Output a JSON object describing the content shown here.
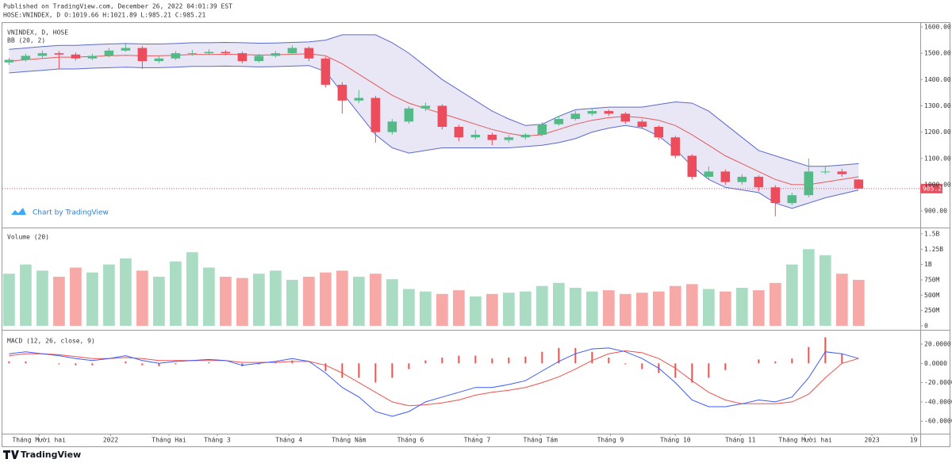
{
  "header": {
    "line1": "Published on TradingView.com, December 26, 2022 04:01:39 EST",
    "line2": "HOSE:VNINDEX, D O:1019.66 H:1021.89 L:985.21 C:985.21"
  },
  "branding": {
    "chart_by": "Chart by TradingView",
    "logo": "TradingView"
  },
  "chart_data": [
    {
      "type": "candlestick",
      "title": "VNINDEX, D, HOSE",
      "subtitle": "BB (20, 2)",
      "up_color": "#53b987",
      "down_color": "#eb4d5c",
      "xlim": [
        -0.4,
        54.7
      ],
      "ylim": [
        837,
        1618
      ],
      "yticks": [
        {
          "value": 900,
          "label": "900.00"
        },
        {
          "value": 1000,
          "label": "1000.00"
        },
        {
          "value": 1100,
          "label": "1100.00"
        },
        {
          "value": 1200,
          "label": "1200.00"
        },
        {
          "value": 1300,
          "label": "1300.00"
        },
        {
          "value": 1400,
          "label": "1400.00"
        },
        {
          "value": 1500,
          "label": "1500.00"
        },
        {
          "value": 1600,
          "label": "1600.00"
        }
      ],
      "ohlc": [
        [
          1465,
          1482,
          1455,
          1475
        ],
        [
          1475,
          1498,
          1468,
          1490
        ],
        [
          1490,
          1510,
          1482,
          1500
        ],
        [
          1500,
          1508,
          1440,
          1495
        ],
        [
          1495,
          1503,
          1472,
          1480
        ],
        [
          1480,
          1498,
          1474,
          1490
        ],
        [
          1490,
          1520,
          1484,
          1510
        ],
        [
          1510,
          1535,
          1505,
          1520
        ],
        [
          1520,
          1528,
          1440,
          1470
        ],
        [
          1470,
          1488,
          1462,
          1480
        ],
        [
          1480,
          1508,
          1474,
          1500
        ],
        [
          1500,
          1512,
          1490,
          1500
        ],
        [
          1500,
          1515,
          1494,
          1505
        ],
        [
          1505,
          1512,
          1492,
          1500
        ],
        [
          1500,
          1506,
          1462,
          1470
        ],
        [
          1470,
          1498,
          1464,
          1490
        ],
        [
          1490,
          1508,
          1484,
          1500
        ],
        [
          1500,
          1530,
          1494,
          1520
        ],
        [
          1520,
          1526,
          1470,
          1480
        ],
        [
          1480,
          1486,
          1370,
          1380
        ],
        [
          1380,
          1390,
          1270,
          1320
        ],
        [
          1320,
          1360,
          1310,
          1330
        ],
        [
          1330,
          1338,
          1160,
          1200
        ],
        [
          1200,
          1250,
          1190,
          1240
        ],
        [
          1240,
          1298,
          1232,
          1290
        ],
        [
          1290,
          1312,
          1280,
          1300
        ],
        [
          1300,
          1306,
          1210,
          1220
        ],
        [
          1220,
          1228,
          1165,
          1180
        ],
        [
          1180,
          1208,
          1172,
          1190
        ],
        [
          1190,
          1198,
          1150,
          1170
        ],
        [
          1170,
          1188,
          1160,
          1180
        ],
        [
          1180,
          1196,
          1172,
          1190
        ],
        [
          1190,
          1238,
          1184,
          1230
        ],
        [
          1230,
          1262,
          1224,
          1250
        ],
        [
          1250,
          1280,
          1244,
          1270
        ],
        [
          1270,
          1292,
          1262,
          1280
        ],
        [
          1280,
          1286,
          1262,
          1270
        ],
        [
          1270,
          1276,
          1232,
          1240
        ],
        [
          1240,
          1248,
          1212,
          1220
        ],
        [
          1220,
          1226,
          1170,
          1180
        ],
        [
          1180,
          1186,
          1100,
          1110
        ],
        [
          1110,
          1116,
          1020,
          1030
        ],
        [
          1030,
          1070,
          1022,
          1050
        ],
        [
          1050,
          1058,
          1000,
          1010
        ],
        [
          1010,
          1040,
          1000,
          1030
        ],
        [
          1030,
          1036,
          975,
          990
        ],
        [
          990,
          998,
          880,
          930
        ],
        [
          930,
          970,
          922,
          960
        ],
        [
          960,
          1100,
          952,
          1050
        ],
        [
          1050,
          1072,
          1040,
          1050
        ],
        [
          1050,
          1060,
          1030,
          1040
        ],
        [
          1019.66,
          1021.89,
          985.21,
          985.21
        ]
      ],
      "band_color": "#5b6ad0",
      "band_fill": "#e3e1f3",
      "basis_color": "#e3595b",
      "bb_upper": [
        1515,
        1520,
        1525,
        1530,
        1530,
        1533,
        1535,
        1537,
        1535,
        1535,
        1537,
        1540,
        1540,
        1541,
        1540,
        1538,
        1539,
        1541,
        1543,
        1550,
        1570,
        1570,
        1570,
        1540,
        1500,
        1450,
        1400,
        1360,
        1320,
        1280,
        1250,
        1225,
        1230,
        1260,
        1285,
        1290,
        1295,
        1295,
        1295,
        1305,
        1315,
        1310,
        1280,
        1230,
        1180,
        1130,
        1110,
        1090,
        1070,
        1070,
        1075,
        1080
      ],
      "bb_basis": [
        1470,
        1475,
        1480,
        1485,
        1485,
        1488,
        1490,
        1492,
        1490,
        1490,
        1492,
        1495,
        1495,
        1496,
        1495,
        1493,
        1494,
        1496,
        1498,
        1490,
        1460,
        1420,
        1380,
        1340,
        1310,
        1290,
        1270,
        1250,
        1230,
        1210,
        1195,
        1185,
        1190,
        1210,
        1230,
        1245,
        1255,
        1260,
        1255,
        1245,
        1225,
        1190,
        1150,
        1110,
        1080,
        1050,
        1020,
        1000,
        1000,
        1010,
        1020,
        1030
      ],
      "bb_lower": [
        1425,
        1430,
        1435,
        1440,
        1440,
        1443,
        1445,
        1447,
        1445,
        1445,
        1447,
        1450,
        1450,
        1451,
        1450,
        1448,
        1449,
        1451,
        1453,
        1430,
        1350,
        1270,
        1190,
        1140,
        1120,
        1130,
        1140,
        1140,
        1140,
        1140,
        1140,
        1145,
        1150,
        1160,
        1175,
        1200,
        1215,
        1225,
        1215,
        1185,
        1135,
        1070,
        1020,
        990,
        980,
        970,
        930,
        910,
        930,
        950,
        965,
        980
      ]
    },
    {
      "type": "bar",
      "title": "Volume (20)",
      "up_color": "#a9dcc3",
      "down_color": "#f7a9a7",
      "xlim": [
        -0.4,
        54.7
      ],
      "ylim": [
        -65000000,
        1590000000
      ],
      "yticks": [
        {
          "value": 0,
          "label": "0"
        },
        {
          "value": 250000000,
          "label": "250M"
        },
        {
          "value": 500000000,
          "label": "500M"
        },
        {
          "value": 750000000,
          "label": "750M"
        },
        {
          "value": 1000000000,
          "label": "1B"
        },
        {
          "value": 1250000000,
          "label": "1.25B"
        },
        {
          "value": 1500000000,
          "label": "1.5B"
        }
      ],
      "values": [
        850000000,
        1000000000,
        900000000,
        800000000,
        950000000,
        870000000,
        1000000000,
        1100000000,
        900000000,
        800000000,
        1050000000,
        1200000000,
        950000000,
        800000000,
        780000000,
        850000000,
        900000000,
        750000000,
        800000000,
        870000000,
        900000000,
        800000000,
        850000000,
        760000000,
        600000000,
        560000000,
        520000000,
        580000000,
        480000000,
        520000000,
        540000000,
        560000000,
        650000000,
        700000000,
        620000000,
        560000000,
        580000000,
        520000000,
        540000000,
        560000000,
        650000000,
        680000000,
        600000000,
        560000000,
        620000000,
        580000000,
        700000000,
        1000000000,
        1250000000,
        1150000000,
        850000000,
        750000000
      ]
    },
    {
      "type": "line",
      "title": "MACD (12, 26, close, 9)",
      "macd_color": "#3d5afe",
      "signal_color": "#f0504f",
      "hist_color": "#ef5350",
      "xlim": [
        -0.4,
        54.7
      ],
      "ylim": [
        -73,
        34
      ],
      "yticks": [
        {
          "value": -60,
          "label": "-60.0000"
        },
        {
          "value": -40,
          "label": "-40.0000"
        },
        {
          "value": -20,
          "label": "-20.0000"
        },
        {
          "value": 0,
          "label": "0.0000"
        },
        {
          "value": 20,
          "label": "20.0000"
        }
      ],
      "macd": [
        10,
        12,
        10,
        8,
        5,
        3,
        5,
        8,
        3,
        0,
        2,
        3,
        4,
        3,
        -2,
        0,
        2,
        5,
        2,
        -10,
        -25,
        -35,
        -50,
        -55,
        -50,
        -40,
        -35,
        -30,
        -25,
        -25,
        -22,
        -18,
        -8,
        2,
        10,
        15,
        16,
        12,
        5,
        -5,
        -20,
        -38,
        -45,
        -45,
        -42,
        -38,
        -40,
        -35,
        -15,
        12,
        10,
        5
      ],
      "signal": [
        8,
        10,
        10,
        9,
        7,
        5,
        5,
        6,
        5,
        3,
        3,
        3,
        3,
        3,
        1,
        1,
        1,
        2,
        2,
        -2,
        -10,
        -20,
        -30,
        -40,
        -44,
        -43,
        -41,
        -38,
        -33,
        -30,
        -28,
        -25,
        -20,
        -14,
        -6,
        3,
        10,
        13,
        11,
        5,
        -5,
        -18,
        -30,
        -38,
        -42,
        -42,
        -42,
        -40,
        -32,
        -15,
        0,
        5
      ],
      "histogram": [
        2,
        2,
        0,
        -1,
        -2,
        -2,
        0,
        2,
        -2,
        -3,
        -1,
        0,
        1,
        0,
        -3,
        -1,
        1,
        3,
        0,
        -8,
        -15,
        -15,
        -20,
        -15,
        -6,
        3,
        6,
        8,
        8,
        5,
        6,
        7,
        12,
        16,
        16,
        12,
        6,
        -1,
        -6,
        -10,
        -15,
        -20,
        -15,
        -7,
        0,
        4,
        2,
        5,
        17,
        27,
        10,
        0
      ],
      "xticks": [
        {
          "value": 1.8,
          "label": "Tháng Mười hai"
        },
        {
          "value": 6.1,
          "label": "2022"
        },
        {
          "value": 9.6,
          "label": "Tháng Hai"
        },
        {
          "value": 12.5,
          "label": "Tháng 3"
        },
        {
          "value": 16.8,
          "label": "Tháng 4"
        },
        {
          "value": 20.4,
          "label": "Tháng Năm"
        },
        {
          "value": 24.1,
          "label": "Tháng 6"
        },
        {
          "value": 28.1,
          "label": "Tháng 7"
        },
        {
          "value": 31.9,
          "label": "Tháng Tám"
        },
        {
          "value": 36.1,
          "label": "Tháng 9"
        },
        {
          "value": 40,
          "label": "Tháng 10"
        },
        {
          "value": 43.9,
          "label": "Tháng 11"
        },
        {
          "value": 47.8,
          "label": "Tháng Mười hai"
        },
        {
          "value": 51.8,
          "label": "2023"
        },
        {
          "value": 54.3,
          "label": "19"
        }
      ]
    }
  ]
}
